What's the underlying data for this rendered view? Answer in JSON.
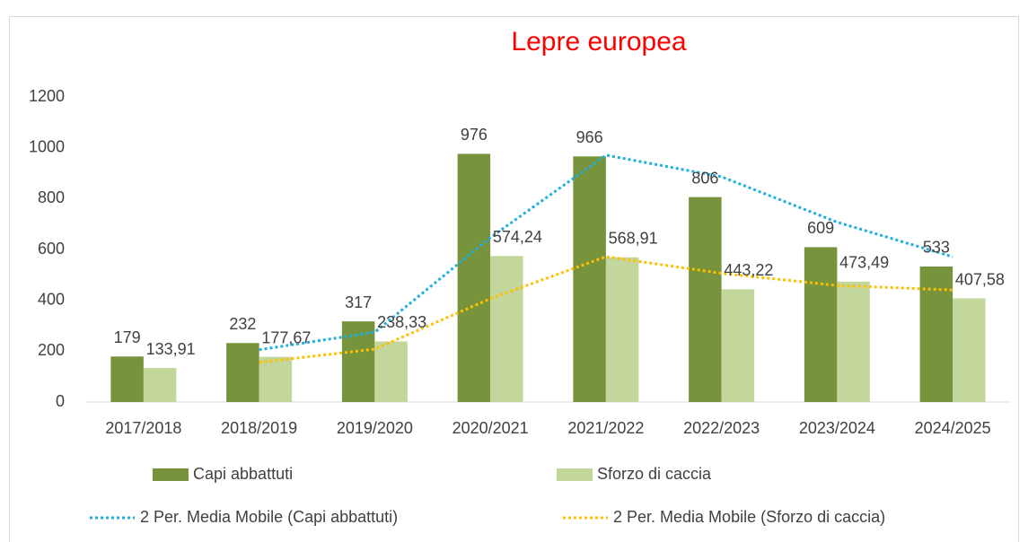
{
  "chart_data": {
    "type": "bar",
    "title": "Lepre europea",
    "categories": [
      "2017/2018",
      "2018/2019",
      "2019/2020",
      "2020/2021",
      "2021/2022",
      "2022/2023",
      "2023/2024",
      "2024/2025"
    ],
    "series": [
      {
        "name": "Capi abbattuti",
        "type": "bar",
        "color": "#77933c",
        "values": [
          179,
          232,
          317,
          976,
          966,
          806,
          609,
          533
        ]
      },
      {
        "name": "Sforzo di caccia",
        "type": "bar",
        "color": "#c3d69b",
        "values": [
          133.91,
          177.67,
          238.33,
          574.24,
          568.91,
          443.22,
          473.49,
          407.58
        ],
        "value_labels": [
          "133,91",
          "177,67",
          "238,33",
          "574,24",
          "568,91",
          "443,22",
          "473,49",
          "407,58"
        ]
      },
      {
        "name": "2 Per. Media Mobile (Capi abbattuti)",
        "type": "line",
        "color": "#1fb0e0",
        "values": [
          null,
          205.5,
          274.5,
          646.5,
          971,
          886,
          707.5,
          571
        ]
      },
      {
        "name": "2 Per. Media Mobile (Sforzo di caccia)",
        "type": "line",
        "color": "#ffc000",
        "values": [
          null,
          155.79,
          208,
          406.29,
          571.58,
          506.07,
          458.36,
          440.54
        ]
      }
    ],
    "ylim": [
      0,
      1200
    ],
    "yticks": [
      0,
      200,
      400,
      600,
      800,
      1000,
      1200
    ],
    "grid": false
  }
}
